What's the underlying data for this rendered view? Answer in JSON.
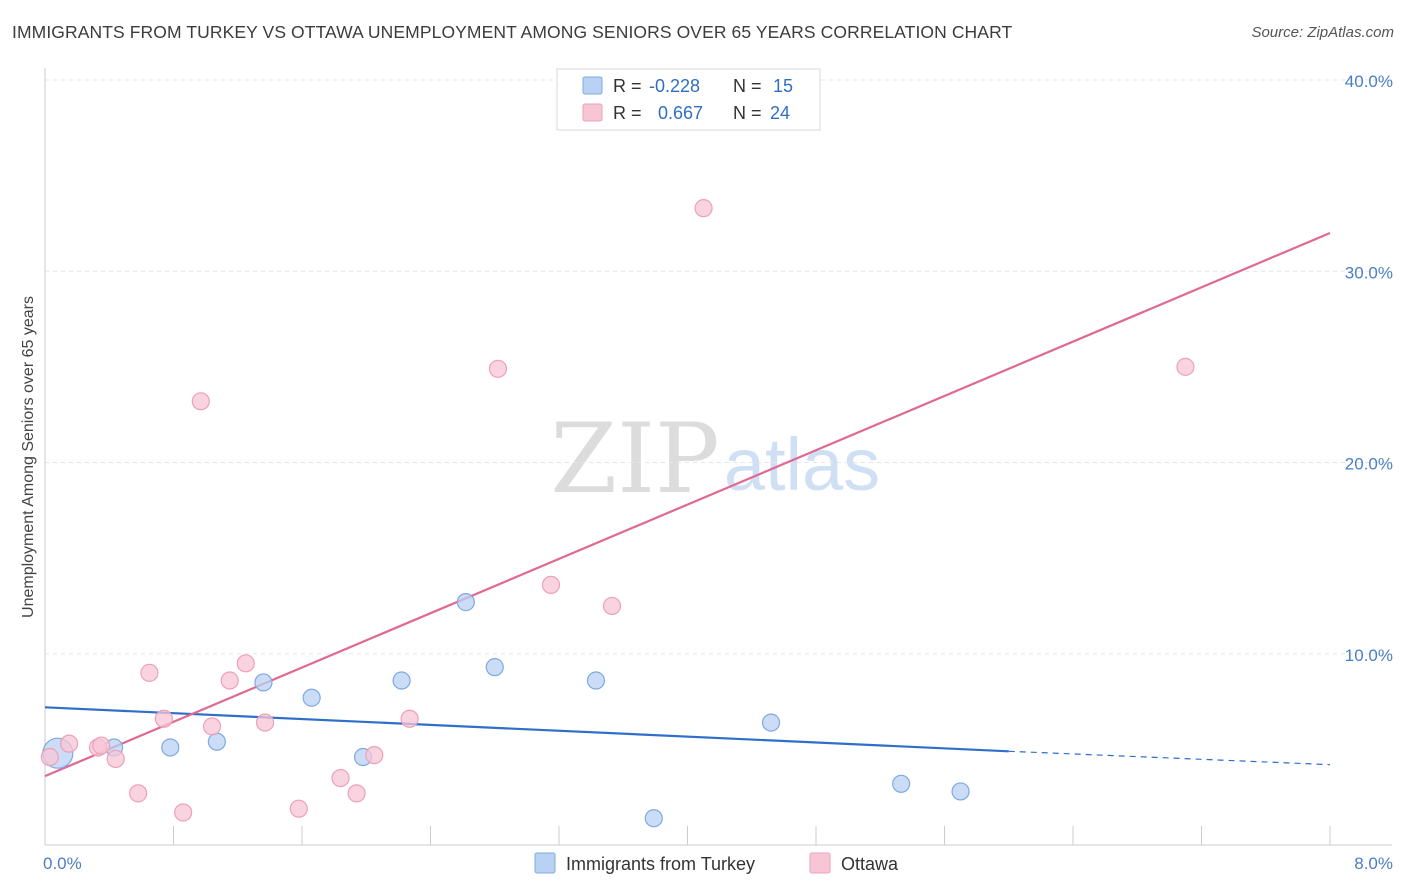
{
  "title": "IMMIGRANTS FROM TURKEY VS OTTAWA UNEMPLOYMENT AMONG SENIORS OVER 65 YEARS CORRELATION CHART",
  "source": "Source: ZipAtlas.com",
  "watermark": {
    "zip": "ZIP",
    "atlas": "atlas"
  },
  "colors": {
    "blue_fill": "#b9d2f3",
    "blue_stroke": "#7ea9e0",
    "blue_line": "#2f6fc9",
    "pink_fill": "#f7c6d5",
    "pink_stroke": "#eea0b8",
    "pink_line": "#e06892",
    "tick_text": "#4a7fc1",
    "grid": "#e5e5e5"
  },
  "legend": {
    "rows": [
      {
        "r_label": "R = ",
        "r_value": "-0.228",
        "n_label": "N = ",
        "n_value": "15",
        "series": "blue"
      },
      {
        "r_label": "R = ",
        "r_value": "0.667",
        "n_label": "N = ",
        "n_value": "24",
        "series": "pink"
      }
    ]
  },
  "chart_data": {
    "type": "scatter",
    "title": "IMMIGRANTS FROM TURKEY VS OTTAWA UNEMPLOYMENT AMONG SENIORS OVER 65 YEARS CORRELATION CHART",
    "xlabel": "",
    "ylabel": "Unemployment Among Seniors over 65 years",
    "xlim": [
      0,
      8
    ],
    "ylim": [
      0,
      40
    ],
    "x_ticks": [
      0,
      8
    ],
    "x_tick_labels": [
      "0.0%",
      "8.0%"
    ],
    "y_ticks": [
      10,
      20,
      30,
      40
    ],
    "y_tick_labels": [
      "10.0%",
      "20.0%",
      "30.0%",
      "40.0%"
    ],
    "grid": true,
    "legend_position": "top-center",
    "series": [
      {
        "name": "Immigrants from Turkey",
        "color": "blue",
        "r": -0.228,
        "n": 15,
        "points": [
          {
            "x": 0.08,
            "y": 4.8,
            "size": "large"
          },
          {
            "x": 0.43,
            "y": 5.1
          },
          {
            "x": 0.78,
            "y": 5.1
          },
          {
            "x": 1.07,
            "y": 5.4
          },
          {
            "x": 1.36,
            "y": 8.5
          },
          {
            "x": 1.66,
            "y": 7.7
          },
          {
            "x": 1.98,
            "y": 4.6
          },
          {
            "x": 2.22,
            "y": 8.6
          },
          {
            "x": 2.62,
            "y": 12.7
          },
          {
            "x": 2.8,
            "y": 9.3
          },
          {
            "x": 3.43,
            "y": 8.6
          },
          {
            "x": 3.79,
            "y": 1.4
          },
          {
            "x": 4.52,
            "y": 6.4
          },
          {
            "x": 5.33,
            "y": 3.2
          },
          {
            "x": 5.7,
            "y": 2.8
          }
        ],
        "trend": {
          "x0": 0,
          "y0": 7.2,
          "x1": 6.0,
          "y1": 4.9,
          "dashed_to_x": 8.0,
          "dashed_to_y": 4.2
        }
      },
      {
        "name": "Ottawa",
        "color": "pink",
        "r": 0.667,
        "n": 24,
        "points": [
          {
            "x": 0.03,
            "y": 4.6
          },
          {
            "x": 0.15,
            "y": 5.3
          },
          {
            "x": 0.33,
            "y": 5.1
          },
          {
            "x": 0.35,
            "y": 5.2
          },
          {
            "x": 0.44,
            "y": 4.5
          },
          {
            "x": 0.58,
            "y": 2.7
          },
          {
            "x": 0.65,
            "y": 9.0
          },
          {
            "x": 0.74,
            "y": 6.6
          },
          {
            "x": 0.86,
            "y": 1.7
          },
          {
            "x": 0.97,
            "y": 23.2
          },
          {
            "x": 1.04,
            "y": 6.2
          },
          {
            "x": 1.15,
            "y": 8.6
          },
          {
            "x": 1.25,
            "y": 9.5
          },
          {
            "x": 1.37,
            "y": 6.4
          },
          {
            "x": 1.58,
            "y": 1.9
          },
          {
            "x": 1.84,
            "y": 3.5
          },
          {
            "x": 1.94,
            "y": 2.7
          },
          {
            "x": 2.05,
            "y": 4.7
          },
          {
            "x": 2.27,
            "y": 6.6
          },
          {
            "x": 2.82,
            "y": 24.9
          },
          {
            "x": 3.15,
            "y": 13.6
          },
          {
            "x": 3.53,
            "y": 12.5
          },
          {
            "x": 4.1,
            "y": 33.3
          },
          {
            "x": 7.1,
            "y": 25.0
          }
        ],
        "trend": {
          "x0": 0,
          "y0": 3.6,
          "x1": 8.0,
          "y1": 32.0
        }
      }
    ]
  },
  "bottom_legend": [
    {
      "label": "Immigrants from Turkey",
      "color": "blue"
    },
    {
      "label": "Ottawa",
      "color": "pink"
    }
  ]
}
